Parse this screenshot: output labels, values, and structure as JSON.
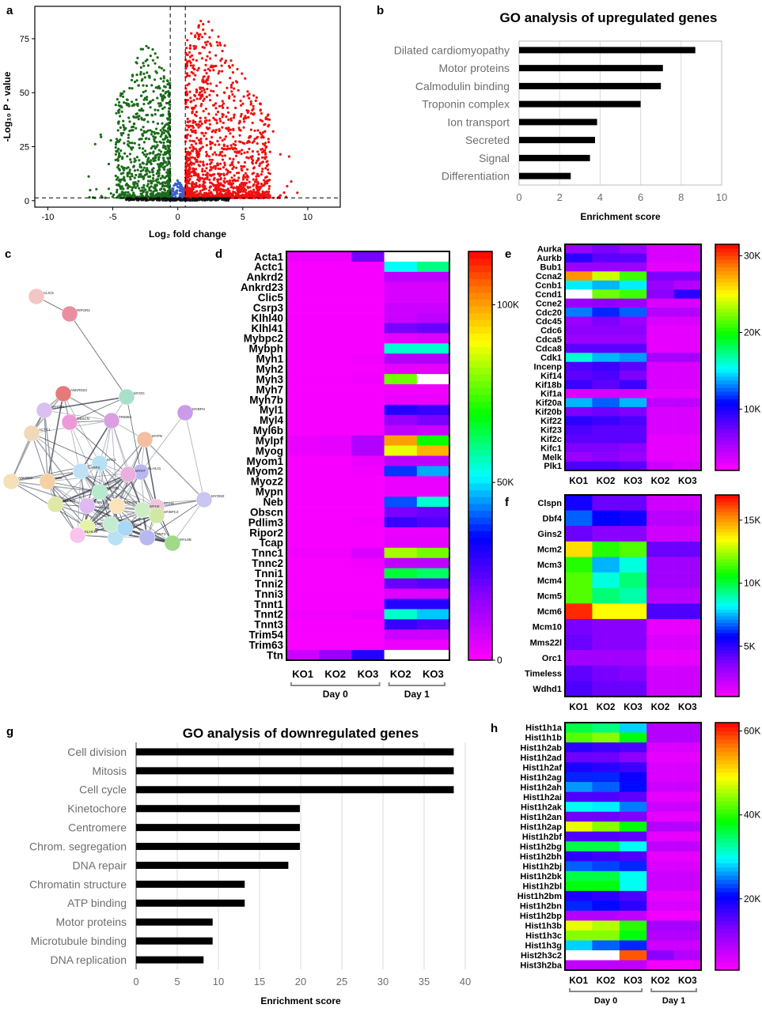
{
  "panel_letters": [
    "a",
    "b",
    "c",
    "d",
    "e",
    "f",
    "g",
    "h"
  ],
  "chart_data": [
    {
      "id": "a",
      "type": "scatter",
      "title": "",
      "xlabel": "Log₂ fold change",
      "ylabel": "-Log₁₀ P - value",
      "xlim": [
        -11,
        12.5
      ],
      "ylim": [
        -3,
        90
      ],
      "xticks": [
        -10,
        -5,
        0,
        5,
        10
      ],
      "yticks": [
        0,
        25,
        50,
        75
      ],
      "fc_thresholds": [
        -0.58,
        0.58
      ],
      "p_threshold": 1.3,
      "colors": {
        "down": "#1b6b1b",
        "up": "#ee1111",
        "ns": "#3a5fcd",
        "base": "#111111"
      },
      "series": [
        {
          "name": "down",
          "points_approx": 900,
          "x_range": [
            -7.8,
            -0.6
          ],
          "max_y": 76
        },
        {
          "name": "up",
          "points_approx": 1400,
          "x_range": [
            0.6,
            9.6
          ],
          "max_y": 86
        },
        {
          "name": "ns",
          "points_approx": 150,
          "x_range": [
            -1.0,
            1.0
          ],
          "max_y": 10
        }
      ]
    },
    {
      "id": "b",
      "type": "bar",
      "orientation": "horizontal",
      "title": "GO analysis of upregulated genes",
      "xlabel": "Enrichment score",
      "categories": [
        "Dilated cardiomyopathy",
        "Motor proteins",
        "Calmodulin binding",
        "Troponin complex",
        "Ion transport",
        "Secreted",
        "Signal",
        "Differentiation"
      ],
      "values": [
        8.7,
        7.1,
        7.0,
        6.0,
        3.85,
        3.75,
        3.5,
        2.55
      ],
      "xlim": [
        0,
        10
      ],
      "xticks": [
        0,
        2,
        4,
        6,
        8,
        10
      ]
    },
    {
      "id": "c",
      "type": "network",
      "title": "",
      "nodes": [
        "CLIC5",
        "RIPOR2",
        "ANKRD23",
        "MYOG",
        "TRIM63",
        "MYBPH",
        "MYOM1",
        "OBSCN",
        "MYPN",
        "ANKRD2",
        "KLHL41",
        "MYH3",
        "MYBPC2",
        "MYOM2",
        "TCAP",
        "MYL1",
        "TRIM54",
        "MYH7",
        "NEB",
        "TNNC1",
        "MYH2",
        "MYL6B",
        "ACTC1",
        "TNNT2",
        "KLHL40",
        "MYOZ2",
        "PDLIM3",
        "CSRP3",
        "TNNI1",
        "MYL4",
        "TNNT3"
      ]
    },
    {
      "id": "d",
      "type": "heatmap",
      "rows": [
        "Acta1",
        "Actc1",
        "Ankrd2",
        "Ankrd23",
        "Clic5",
        "Csrp3",
        "Klhl40",
        "Klhl41",
        "Mybpc2",
        "Mybph",
        "Myh1",
        "Myh2",
        "Myh3",
        "Myh7",
        "Myh7b",
        "Myl1",
        "Myl4",
        "Myl6b",
        "Mylpf",
        "Myog",
        "Myom1",
        "Myom2",
        "Myoz2",
        "Mypn",
        "Neb",
        "Obscn",
        "Pdlim3",
        "Ripor2",
        "Tcap",
        "Tnnc1",
        "Tnnc2",
        "Tnni1",
        "Tnni2",
        "Tnni3",
        "Tnnt1",
        "Tnnt2",
        "Tnnt3",
        "Trim54",
        "Trim63",
        "Ttn"
      ],
      "columns": [
        "KO1",
        "KO2",
        "KO3",
        "KO2",
        "KO3"
      ],
      "groups": [
        {
          "label": "Day 0",
          "span": 3
        },
        {
          "label": "Day 1",
          "span": 2
        }
      ],
      "vmin": 0,
      "vmax": 115000,
      "colorbar_ticks": [
        {
          "value": 0,
          "label": "0"
        },
        {
          "value": 50000,
          "label": "50K"
        },
        {
          "value": 100000,
          "label": "100K"
        }
      ],
      "values": [
        [
          3000,
          3000,
          20000,
          null,
          null
        ],
        [
          1000,
          1000,
          1000,
          52000,
          60000
        ],
        [
          1000,
          1000,
          1000,
          10000,
          10000
        ],
        [
          1000,
          1000,
          1000,
          6000,
          6000
        ],
        [
          1000,
          1000,
          1000,
          6000,
          6000
        ],
        [
          1000,
          1000,
          1000,
          8000,
          8000
        ],
        [
          1000,
          1000,
          1000,
          8000,
          10000
        ],
        [
          1000,
          1000,
          1000,
          20000,
          22000
        ],
        [
          1000,
          1000,
          1000,
          4000,
          5000
        ],
        [
          1000,
          1000,
          1000,
          55000,
          55000
        ],
        [
          1000,
          1000,
          2000,
          12000,
          12000
        ],
        [
          1000,
          1000,
          1000,
          4000,
          4000
        ],
        [
          1000,
          1000,
          2000,
          78000,
          null
        ],
        [
          1000,
          1000,
          1000,
          2000,
          2000
        ],
        [
          1000,
          1000,
          1000,
          3000,
          3000
        ],
        [
          1000,
          1000,
          1000,
          30000,
          28000
        ],
        [
          1000,
          1000,
          1000,
          16000,
          20000
        ],
        [
          1000,
          1000,
          1000,
          10000,
          8000
        ],
        [
          3000,
          4000,
          12000,
          100000,
          70000
        ],
        [
          3000,
          4000,
          12000,
          88000,
          98000
        ],
        [
          1000,
          1000,
          3000,
          10000,
          10000
        ],
        [
          1000,
          1000,
          2000,
          38000,
          46000
        ],
        [
          1000,
          1000,
          1000,
          3000,
          3000
        ],
        [
          1000,
          1000,
          1000,
          3000,
          3000
        ],
        [
          1000,
          1000,
          1000,
          40000,
          55000
        ],
        [
          1000,
          1000,
          1000,
          20000,
          22000
        ],
        [
          1000,
          1000,
          2000,
          28000,
          25000
        ],
        [
          1000,
          1000,
          1000,
          3000,
          3000
        ],
        [
          1000,
          1000,
          1000,
          4000,
          4000
        ],
        [
          2000,
          2000,
          6000,
          82000,
          78000
        ],
        [
          1000,
          1000,
          2000,
          10000,
          10000
        ],
        [
          1000,
          1000,
          1000,
          65000,
          62000
        ],
        [
          1000,
          1000,
          1000,
          22000,
          24000
        ],
        [
          1000,
          1000,
          1000,
          5000,
          5000
        ],
        [
          1000,
          1000,
          1000,
          30000,
          30000
        ],
        [
          2000,
          2000,
          3000,
          55000,
          48000
        ],
        [
          1000,
          1000,
          1000,
          28000,
          25000
        ],
        [
          1000,
          1000,
          1000,
          8000,
          8000
        ],
        [
          1000,
          1000,
          1000,
          3000,
          3000
        ],
        [
          8000,
          16000,
          30000,
          null,
          null
        ]
      ]
    },
    {
      "id": "f",
      "type": "heatmap",
      "rows": [
        "Aurka",
        "Aurkb",
        "Bub1",
        "Ccna2",
        "Ccnb1",
        "Ccnd1",
        "Ccne2",
        "Cdc20",
        "Cdc45",
        "Cdc6",
        "Cdca5",
        "Cdca8",
        "Cdk1",
        "Incenp",
        "Kif14",
        "Kif18b",
        "Kif1a",
        "Kif20a",
        "Kif20b",
        "Kif22",
        "Kif23",
        "Kif2c",
        "Kifc1",
        "Melk",
        "Plk1"
      ],
      "columns": [
        "KO1",
        "KO2",
        "KO3",
        "KO2",
        "KO3"
      ],
      "vmin": 2000,
      "vmax": 31500,
      "colorbar_ticks": [
        {
          "value": 10000,
          "label": "10K"
        },
        {
          "value": 20000,
          "label": "20K"
        },
        {
          "value": 30000,
          "label": "30K"
        }
      ],
      "values": [
        [
          6000,
          7000,
          6000,
          3500,
          3500
        ],
        [
          9500,
          8000,
          8000,
          3500,
          3500
        ],
        [
          6000,
          6000,
          6000,
          3000,
          3000
        ],
        [
          28000,
          24000,
          21000,
          7000,
          7000
        ],
        [
          15000,
          14000,
          15000,
          6000,
          5000
        ],
        [
          null,
          22000,
          21000,
          6500,
          9500
        ],
        [
          6000,
          6500,
          6000,
          3500,
          3500
        ],
        [
          13000,
          11500,
          12500,
          5000,
          5000
        ],
        [
          6000,
          7000,
          6000,
          3500,
          3500
        ],
        [
          6500,
          6500,
          6500,
          3000,
          3000
        ],
        [
          6000,
          6000,
          6000,
          3000,
          3000
        ],
        [
          8000,
          8000,
          8000,
          3000,
          3000
        ],
        [
          16000,
          14000,
          13500,
          5500,
          5500
        ],
        [
          8500,
          9000,
          8000,
          3500,
          3500
        ],
        [
          8000,
          8500,
          7000,
          3500,
          3500
        ],
        [
          9000,
          8000,
          9000,
          3500,
          3500
        ],
        [
          3500,
          3500,
          3500,
          3000,
          3000
        ],
        [
          14000,
          12500,
          14000,
          4500,
          4500
        ],
        [
          7000,
          7500,
          7000,
          3500,
          3500
        ],
        [
          9500,
          9000,
          8500,
          3500,
          3500
        ],
        [
          8500,
          8000,
          8000,
          3500,
          3500
        ],
        [
          8000,
          8000,
          8000,
          3000,
          3000
        ],
        [
          7000,
          7000,
          6500,
          3000,
          3000
        ],
        [
          6000,
          6500,
          6000,
          3000,
          3000
        ],
        [
          8500,
          8500,
          8000,
          4000,
          3500
        ]
      ]
    },
    {
      "id": "g",
      "type": "heatmap",
      "rows": [
        "Clspn",
        "Dbf4",
        "Gins2",
        "Mcm2",
        "Mcm3",
        "Mcm4",
        "Mcm5",
        "Mcm6",
        "Mcm10",
        "Mms22l",
        "Orc1",
        "Timeless",
        "Wdhd1"
      ],
      "columns": [
        "KO1",
        "KO2",
        "KO3",
        "KO2",
        "KO3"
      ],
      "vmin": 1000,
      "vmax": 17000,
      "colorbar_ticks": [
        {
          "value": 5000,
          "label": "5K"
        },
        {
          "value": 10000,
          "label": "10K"
        },
        {
          "value": 15000,
          "label": "15K"
        }
      ],
      "values": [
        [
          5500,
          4000,
          4000,
          2000,
          2000
        ],
        [
          6700,
          5800,
          5500,
          2500,
          2500
        ],
        [
          4000,
          3500,
          3500,
          2000,
          2000
        ],
        [
          14000,
          11000,
          11500,
          4000,
          4000
        ],
        [
          11000,
          7500,
          8500,
          3000,
          3000
        ],
        [
          11500,
          8500,
          9500,
          3000,
          3000
        ],
        [
          11500,
          9500,
          9000,
          2500,
          2500
        ],
        [
          16500,
          13500,
          13500,
          4500,
          4500
        ],
        [
          3800,
          3500,
          3500,
          1500,
          1500
        ],
        [
          4000,
          3500,
          3500,
          1800,
          1800
        ],
        [
          3000,
          3000,
          3000,
          1500,
          1500
        ],
        [
          4200,
          3800,
          3600,
          2000,
          2000
        ],
        [
          4500,
          4000,
          4000,
          2000,
          2000
        ]
      ]
    },
    {
      "id": "h",
      "type": "heatmap",
      "rows": [
        "Hist1h1a",
        "Hist1h1b",
        "Hist1h2ab",
        "Hist1h2ad",
        "Hist1h2af",
        "Hist1h2ag",
        "Hist1h2ah",
        "Hist1h2ai",
        "Hist1h2ak",
        "Hist1h2an",
        "Hist1h2ap",
        "Hist1h2bf",
        "Hist1h2bg",
        "Hist1h2bh",
        "Hist1h2bj",
        "Hist1h2bk",
        "Hist1h2bl",
        "Hist1h2bm",
        "Hist1h2bn",
        "Hist1h2bp",
        "Hist1h3b",
        "Hist1h3c",
        "Hist1h3g",
        "Hist2h3c2",
        "Hist3h2ba"
      ],
      "columns": [
        "KO1",
        "KO2",
        "KO3",
        "KO2",
        "KO3"
      ],
      "groups": [
        {
          "label": "Day 0",
          "span": 3
        },
        {
          "label": "Day 1",
          "span": 2
        }
      ],
      "vmin": 3000,
      "vmax": 62000,
      "colorbar_ticks": [
        {
          "value": 20000,
          "label": "20K"
        },
        {
          "value": 40000,
          "label": "40K"
        },
        {
          "value": 60000,
          "label": "60K"
        }
      ],
      "values": [
        [
          36000,
          34000,
          28000,
          9000,
          9000
        ],
        [
          42000,
          44000,
          38000,
          9000,
          9000
        ],
        [
          18000,
          17000,
          16000,
          6000,
          6000
        ],
        [
          14000,
          14000,
          12000,
          5000,
          5000
        ],
        [
          19000,
          18000,
          17000,
          6000,
          6000
        ],
        [
          22000,
          22000,
          20000,
          6000,
          6000
        ],
        [
          26000,
          24000,
          21000,
          7000,
          7000
        ],
        [
          16000,
          16000,
          15000,
          5000,
          5000
        ],
        [
          30000,
          29000,
          25000,
          7000,
          7000
        ],
        [
          14000,
          14000,
          13000,
          5000,
          5000
        ],
        [
          48000,
          44000,
          38000,
          9000,
          9000
        ],
        [
          16000,
          16000,
          15000,
          5000,
          5000
        ],
        [
          36000,
          36000,
          30000,
          8000,
          8000
        ],
        [
          18000,
          17000,
          16000,
          5000,
          5000
        ],
        [
          24000,
          23000,
          22000,
          6000,
          6000
        ],
        [
          36000,
          36000,
          30000,
          7000,
          7000
        ],
        [
          38000,
          38000,
          30000,
          7000,
          7000
        ],
        [
          19000,
          18000,
          16000,
          5000,
          5000
        ],
        [
          22000,
          21000,
          18000,
          6000,
          6000
        ],
        [
          9000,
          9000,
          8000,
          4000,
          4000
        ],
        [
          48000,
          46000,
          40000,
          10000,
          10000
        ],
        [
          44000,
          44000,
          38000,
          9000,
          9000
        ],
        [
          28000,
          24000,
          22000,
          7000,
          7000
        ],
        [
          null,
          null,
          58000,
          12000,
          9000
        ],
        [
          8000,
          8000,
          8000,
          4000,
          4000
        ]
      ]
    },
    {
      "id": "e",
      "type": "bar",
      "orientation": "horizontal",
      "title": "GO analysis of downregulated genes",
      "xlabel": "Enrichment score",
      "categories": [
        "Cell division",
        "Mitosis",
        "Cell cycle",
        "Kinetochore",
        "Centromere",
        "Chrom. segregation",
        "DNA repair",
        "Chromatin structure",
        "ATP binding",
        "Motor proteins",
        "Microtubule binding",
        "DNA replication"
      ],
      "values": [
        38.6,
        38.6,
        38.6,
        19.9,
        19.9,
        19.9,
        18.5,
        13.2,
        13.2,
        9.3,
        9.3,
        8.2
      ],
      "xlim": [
        0,
        40
      ],
      "xticks": [
        0,
        5,
        10,
        15,
        20,
        25,
        30,
        35,
        40
      ]
    }
  ]
}
